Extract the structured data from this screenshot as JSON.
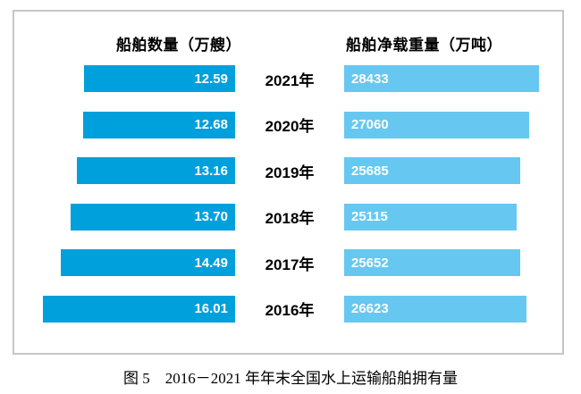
{
  "chart_data": {
    "type": "bar",
    "subtype": "tornado-paired-horizontal",
    "title": "图 5　2016－2021 年年末全国水上运输船舶拥有量",
    "categories": [
      "2021年",
      "2020年",
      "2019年",
      "2018年",
      "2017年",
      "2016年"
    ],
    "series": [
      {
        "name": "船舶数量（万艘）",
        "values": [
          12.59,
          12.68,
          13.16,
          13.7,
          14.49,
          16.01
        ],
        "color": "#00a0dc",
        "direction": "left",
        "value_max": 16.01
      },
      {
        "name": "船舶净载重量（万吨）",
        "values": [
          28433,
          27060,
          25685,
          25115,
          25652,
          26623
        ],
        "color": "#66c8f0",
        "direction": "right",
        "value_max": 28433
      }
    ],
    "layout": {
      "legend_position": "top",
      "grid": false,
      "axis_labels_visible": false,
      "value_labels": "inside-bar",
      "frame_border_color": "#c6c6c6"
    }
  },
  "headers": {
    "left": "船舶数量（万艘）",
    "right": "船舶净载重量（万吨）"
  },
  "rows": [
    {
      "year": "2021年",
      "count": "12.59",
      "tonnage": "28433"
    },
    {
      "year": "2020年",
      "count": "12.68",
      "tonnage": "27060"
    },
    {
      "year": "2019年",
      "count": "13.16",
      "tonnage": "25685"
    },
    {
      "year": "2018年",
      "count": "13.70",
      "tonnage": "25115"
    },
    {
      "year": "2017年",
      "count": "14.49",
      "tonnage": "25652"
    },
    {
      "year": "2016年",
      "count": "16.01",
      "tonnage": "26623"
    }
  ],
  "caption": "图 5　2016－2021 年年末全国水上运输船舶拥有量"
}
